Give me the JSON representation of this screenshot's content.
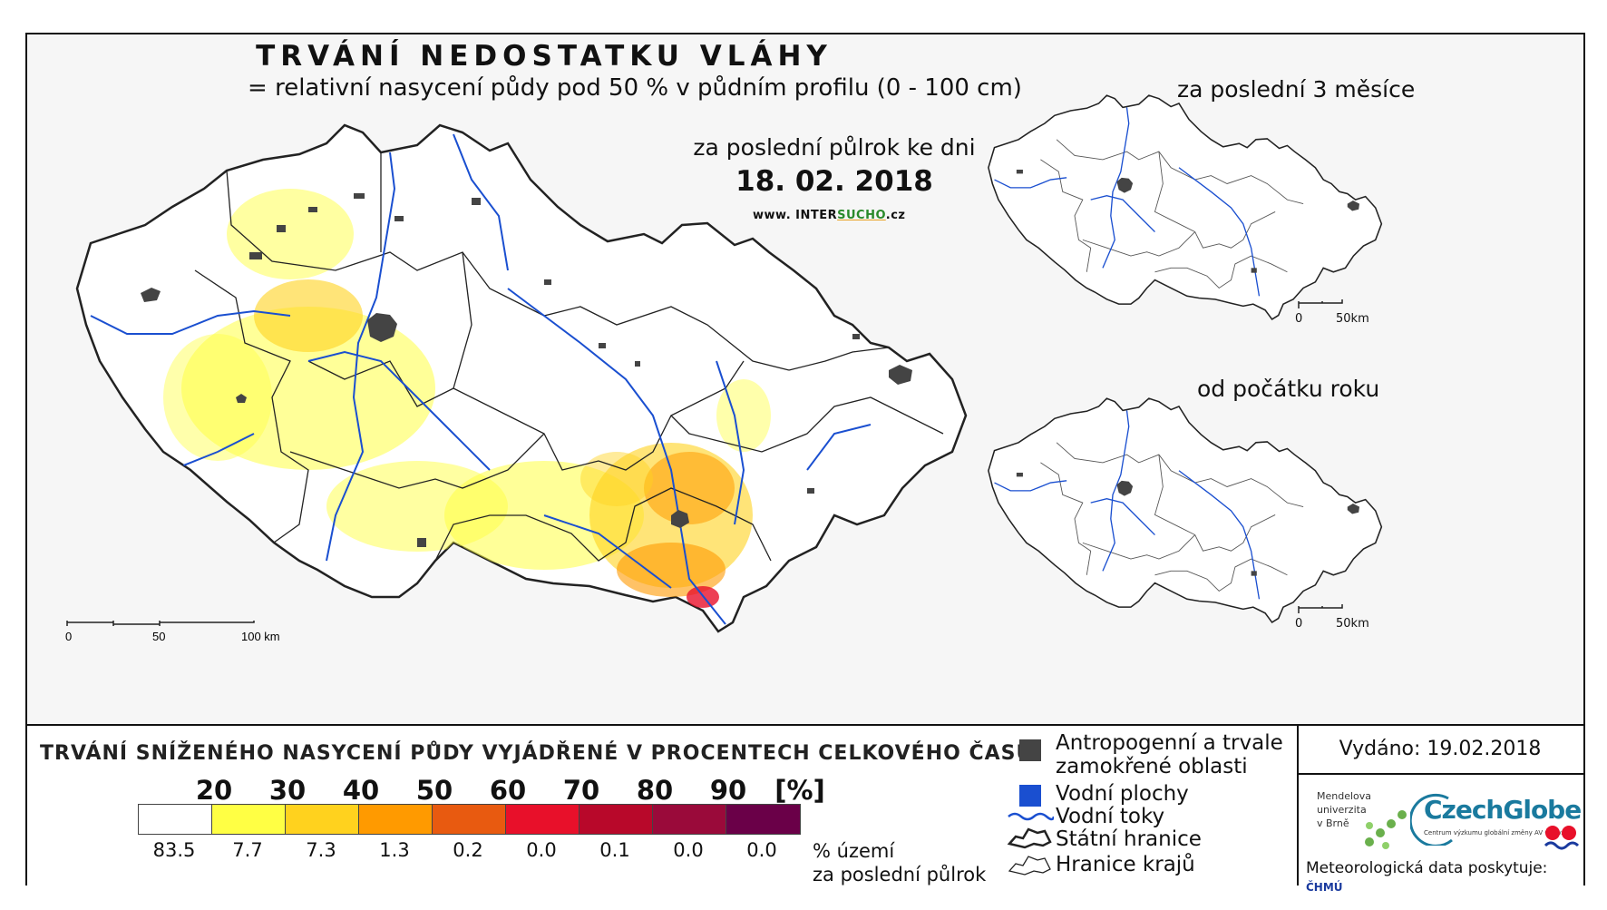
{
  "title": "TRVÁNÍ NEDOSTATKU VLÁHY",
  "subtitle": "= relativní nasycení půdy pod 50 % v půdním profilu (0 - 100 cm)",
  "main_map": {
    "period_label": "za poslední půlrok ke dni",
    "date": "18. 02. 2018",
    "website_prefix": "www. INTER",
    "website_accent": "SUCHO",
    "website_suffix": ".cz",
    "scale_labels": [
      "0",
      "50",
      "100 km"
    ]
  },
  "insets": [
    {
      "title": "za poslední 3 měsíce",
      "scale_labels": [
        "0",
        "50km"
      ]
    },
    {
      "title": "od počátku roku",
      "scale_labels": [
        "0",
        "50km"
      ]
    }
  ],
  "legend": {
    "title": "TRVÁNÍ SNÍŽENÉHO NASYCENÍ PŮDY VYJÁDŘENÉ V PROCENTECH CELKOVÉHO ČASU",
    "thresholds": [
      "20",
      "30",
      "40",
      "50",
      "60",
      "70",
      "80",
      "90",
      "[%]"
    ],
    "class_colors": [
      "#ffffff",
      "#ffff44",
      "#ffd21e",
      "#ff9a00",
      "#e85a10",
      "#e8102a",
      "#b8082a",
      "#9a0a3a",
      "#6a0048"
    ],
    "area_values": [
      "83.5",
      "7.7",
      "7.3",
      "1.3",
      "0.2",
      "0.0",
      "0.1",
      "0.0",
      "0.0"
    ],
    "unit_line1": "% území",
    "unit_line2": "za poslední půlrok"
  },
  "key": {
    "anthropogenic_line1": "Antropogenní a trvale",
    "anthropogenic_line2": "zamokřené oblasti",
    "water_bodies": "Vodní plochy",
    "rivers": "Vodní toky",
    "state_border": "Státní hranice",
    "regional_border": "Hranice krajů"
  },
  "credits": {
    "issued": "Vydáno: 19.02.2018",
    "mendel_line1": "Mendelova",
    "mendel_line2": "univerzita",
    "mendel_line3": "v Brně",
    "czechglobe": "CzechGlobe",
    "czechglobe_sub": "Centrum výzkumu globální změny AV ČR, v. v. i.",
    "meteo_label": "Meteorologická data poskytuje:",
    "meteo_provider": "ČHMÚ"
  },
  "colors": {
    "river": "#1a4fd0",
    "anthropogenic": "#444444",
    "water_body": "#1a4fd0",
    "border": "#222222"
  }
}
